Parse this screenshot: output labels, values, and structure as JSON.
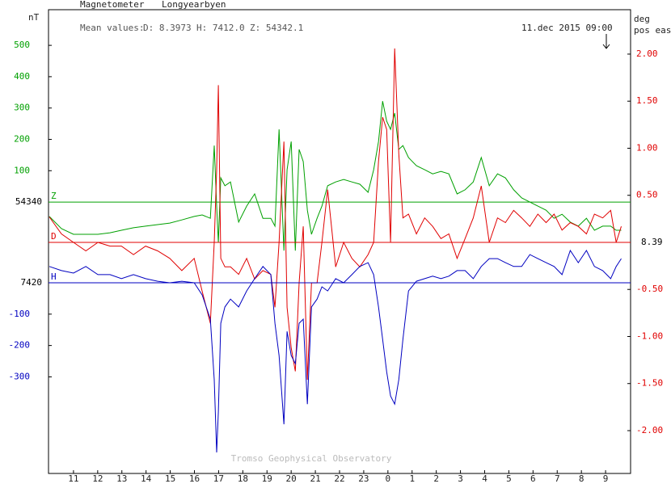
{
  "chart_data": {
    "type": "line",
    "title": "Magnetometer",
    "station": "Longyearbyen",
    "mean_label": "Mean values:",
    "mean_values": [
      "D: 8.3973",
      "H: 7412.0",
      "Z: 54342.1"
    ],
    "timestamp": "11.dec 2015 09:00",
    "credit": "Tromso Geophysical Observatory",
    "y_label": "nT",
    "y2_label": [
      "deg",
      "pos east"
    ],
    "xlim": [
      10,
      34
    ],
    "xticks": [
      11,
      12,
      13,
      14,
      15,
      16,
      17,
      18,
      19,
      20,
      21,
      22,
      23,
      {
        "value": 24,
        "label": "0"
      },
      {
        "value": 25,
        "label": "1"
      },
      {
        "value": 26,
        "label": "2"
      },
      {
        "value": 27,
        "label": "3"
      },
      {
        "value": 28,
        "label": "4"
      },
      {
        "value": 29,
        "label": "5"
      },
      {
        "value": 30,
        "label": "6"
      },
      {
        "value": 31,
        "label": "7"
      },
      {
        "value": 32,
        "label": "8"
      },
      {
        "value": 33,
        "label": "9"
      }
    ],
    "x": [
      10.0,
      10.5,
      11.0,
      11.51,
      12.01,
      12.51,
      12.98,
      13.48,
      13.98,
      14.48,
      14.98,
      15.48,
      15.99,
      16.32,
      16.66,
      16.82,
      16.92,
      16.99,
      17.09,
      17.26,
      17.49,
      17.83,
      18.16,
      18.49,
      18.83,
      19.16,
      19.33,
      19.5,
      19.7,
      19.83,
      20.0,
      20.17,
      20.33,
      20.5,
      20.67,
      20.84,
      21.07,
      21.27,
      21.51,
      21.84,
      22.17,
      22.51,
      22.84,
      23.18,
      23.41,
      23.61,
      23.78,
      23.95,
      24.11,
      24.28,
      24.45,
      24.62,
      24.85,
      25.18,
      25.52,
      25.85,
      26.19,
      26.52,
      26.86,
      27.19,
      27.53,
      27.86,
      28.19,
      28.53,
      28.86,
      29.2,
      29.53,
      29.87,
      30.2,
      30.54,
      30.87,
      31.2,
      31.54,
      31.87,
      32.21,
      32.54,
      32.88,
      33.21,
      33.44,
      33.65
    ],
    "y2lim": [
      -2.455,
      2.446
    ],
    "y2ticks": [
      {
        "value": 2,
        "label": "2.00"
      },
      {
        "value": 1.5,
        "label": "1.50"
      },
      {
        "value": 1,
        "label": "1.00"
      },
      {
        "value": 0.5,
        "label": "0.50"
      },
      {
        "value": -0.5,
        "label": "-0.50"
      },
      {
        "value": -1,
        "label": "-1.00"
      },
      {
        "value": -1.5,
        "label": "-1.50"
      },
      {
        "value": -2,
        "label": "-2.00"
      }
    ],
    "series": [
      {
        "name": "Z",
        "color": "#00a000",
        "baseline_label": "54340",
        "ylim": [
          -866,
          606
        ],
        "yticks": [
          500,
          400,
          300,
          200,
          100
        ],
        "values": [
          -46,
          -85,
          -103,
          -103,
          -103,
          -98,
          -90,
          -82,
          -77,
          -72,
          -67,
          -57,
          -46,
          -41,
          -52,
          180,
          -13,
          -129,
          77,
          52,
          64,
          -64,
          -13,
          26,
          -52,
          -52,
          -77,
          232,
          -155,
          103,
          193,
          -155,
          168,
          129,
          -26,
          -103,
          -52,
          -13,
          52,
          64,
          72,
          64,
          57,
          31,
          103,
          193,
          322,
          258,
          232,
          284,
          168,
          180,
          142,
          116,
          103,
          90,
          98,
          90,
          26,
          39,
          64,
          142,
          52,
          90,
          77,
          39,
          13,
          0,
          -13,
          -26,
          -52,
          -39,
          -64,
          -77,
          -52,
          -90,
          -77,
          -77,
          -90,
          -90
        ]
      },
      {
        "name": "D",
        "color": "#e00000",
        "axis": "y2",
        "baseline_label": "8.39",
        "values": [
          0.27,
          0.09,
          0,
          -0.09,
          0,
          -0.04,
          -0.04,
          -0.13,
          -0.04,
          -0.09,
          -0.17,
          -0.3,
          -0.17,
          -0.52,
          -0.86,
          0,
          0.77,
          1.67,
          -0.17,
          -0.26,
          -0.26,
          -0.34,
          -0.17,
          -0.39,
          -0.3,
          -0.34,
          -0.69,
          0,
          1.07,
          -0.69,
          -1.12,
          -1.37,
          -0.43,
          0.17,
          -1.46,
          -0.43,
          -0.43,
          0,
          0.56,
          -0.26,
          0,
          -0.17,
          -0.26,
          -0.13,
          0,
          0.86,
          1.33,
          1.2,
          0,
          2.06,
          0.94,
          0.26,
          0.3,
          0.09,
          0.26,
          0.17,
          0.04,
          0.09,
          -0.17,
          0.04,
          0.26,
          0.6,
          0,
          0.26,
          0.21,
          0.34,
          0.26,
          0.17,
          0.3,
          0.21,
          0.3,
          0.13,
          0.21,
          0.17,
          0.09,
          0.3,
          0.26,
          0.34,
          0,
          0.17
        ]
      },
      {
        "name": "H",
        "color": "#0000c0",
        "baseline_label": "7420",
        "ylim": [
          -608,
          863
        ],
        "yticks": [
          -100,
          -200,
          -300
        ],
        "values": [
          52,
          39,
          31,
          52,
          26,
          26,
          13,
          26,
          13,
          5,
          0,
          5,
          0,
          -39,
          -116,
          -309,
          -541,
          -412,
          -129,
          -77,
          -52,
          -77,
          -26,
          13,
          52,
          26,
          -129,
          -232,
          -451,
          -155,
          -232,
          -258,
          -129,
          -116,
          -387,
          -77,
          -52,
          -13,
          -26,
          13,
          0,
          26,
          52,
          64,
          26,
          -77,
          -180,
          -284,
          -361,
          -387,
          -309,
          -180,
          -26,
          5,
          13,
          21,
          13,
          21,
          39,
          39,
          13,
          52,
          77,
          77,
          64,
          52,
          52,
          90,
          77,
          64,
          52,
          26,
          103,
          64,
          103,
          52,
          39,
          13,
          52,
          77
        ]
      }
    ]
  }
}
